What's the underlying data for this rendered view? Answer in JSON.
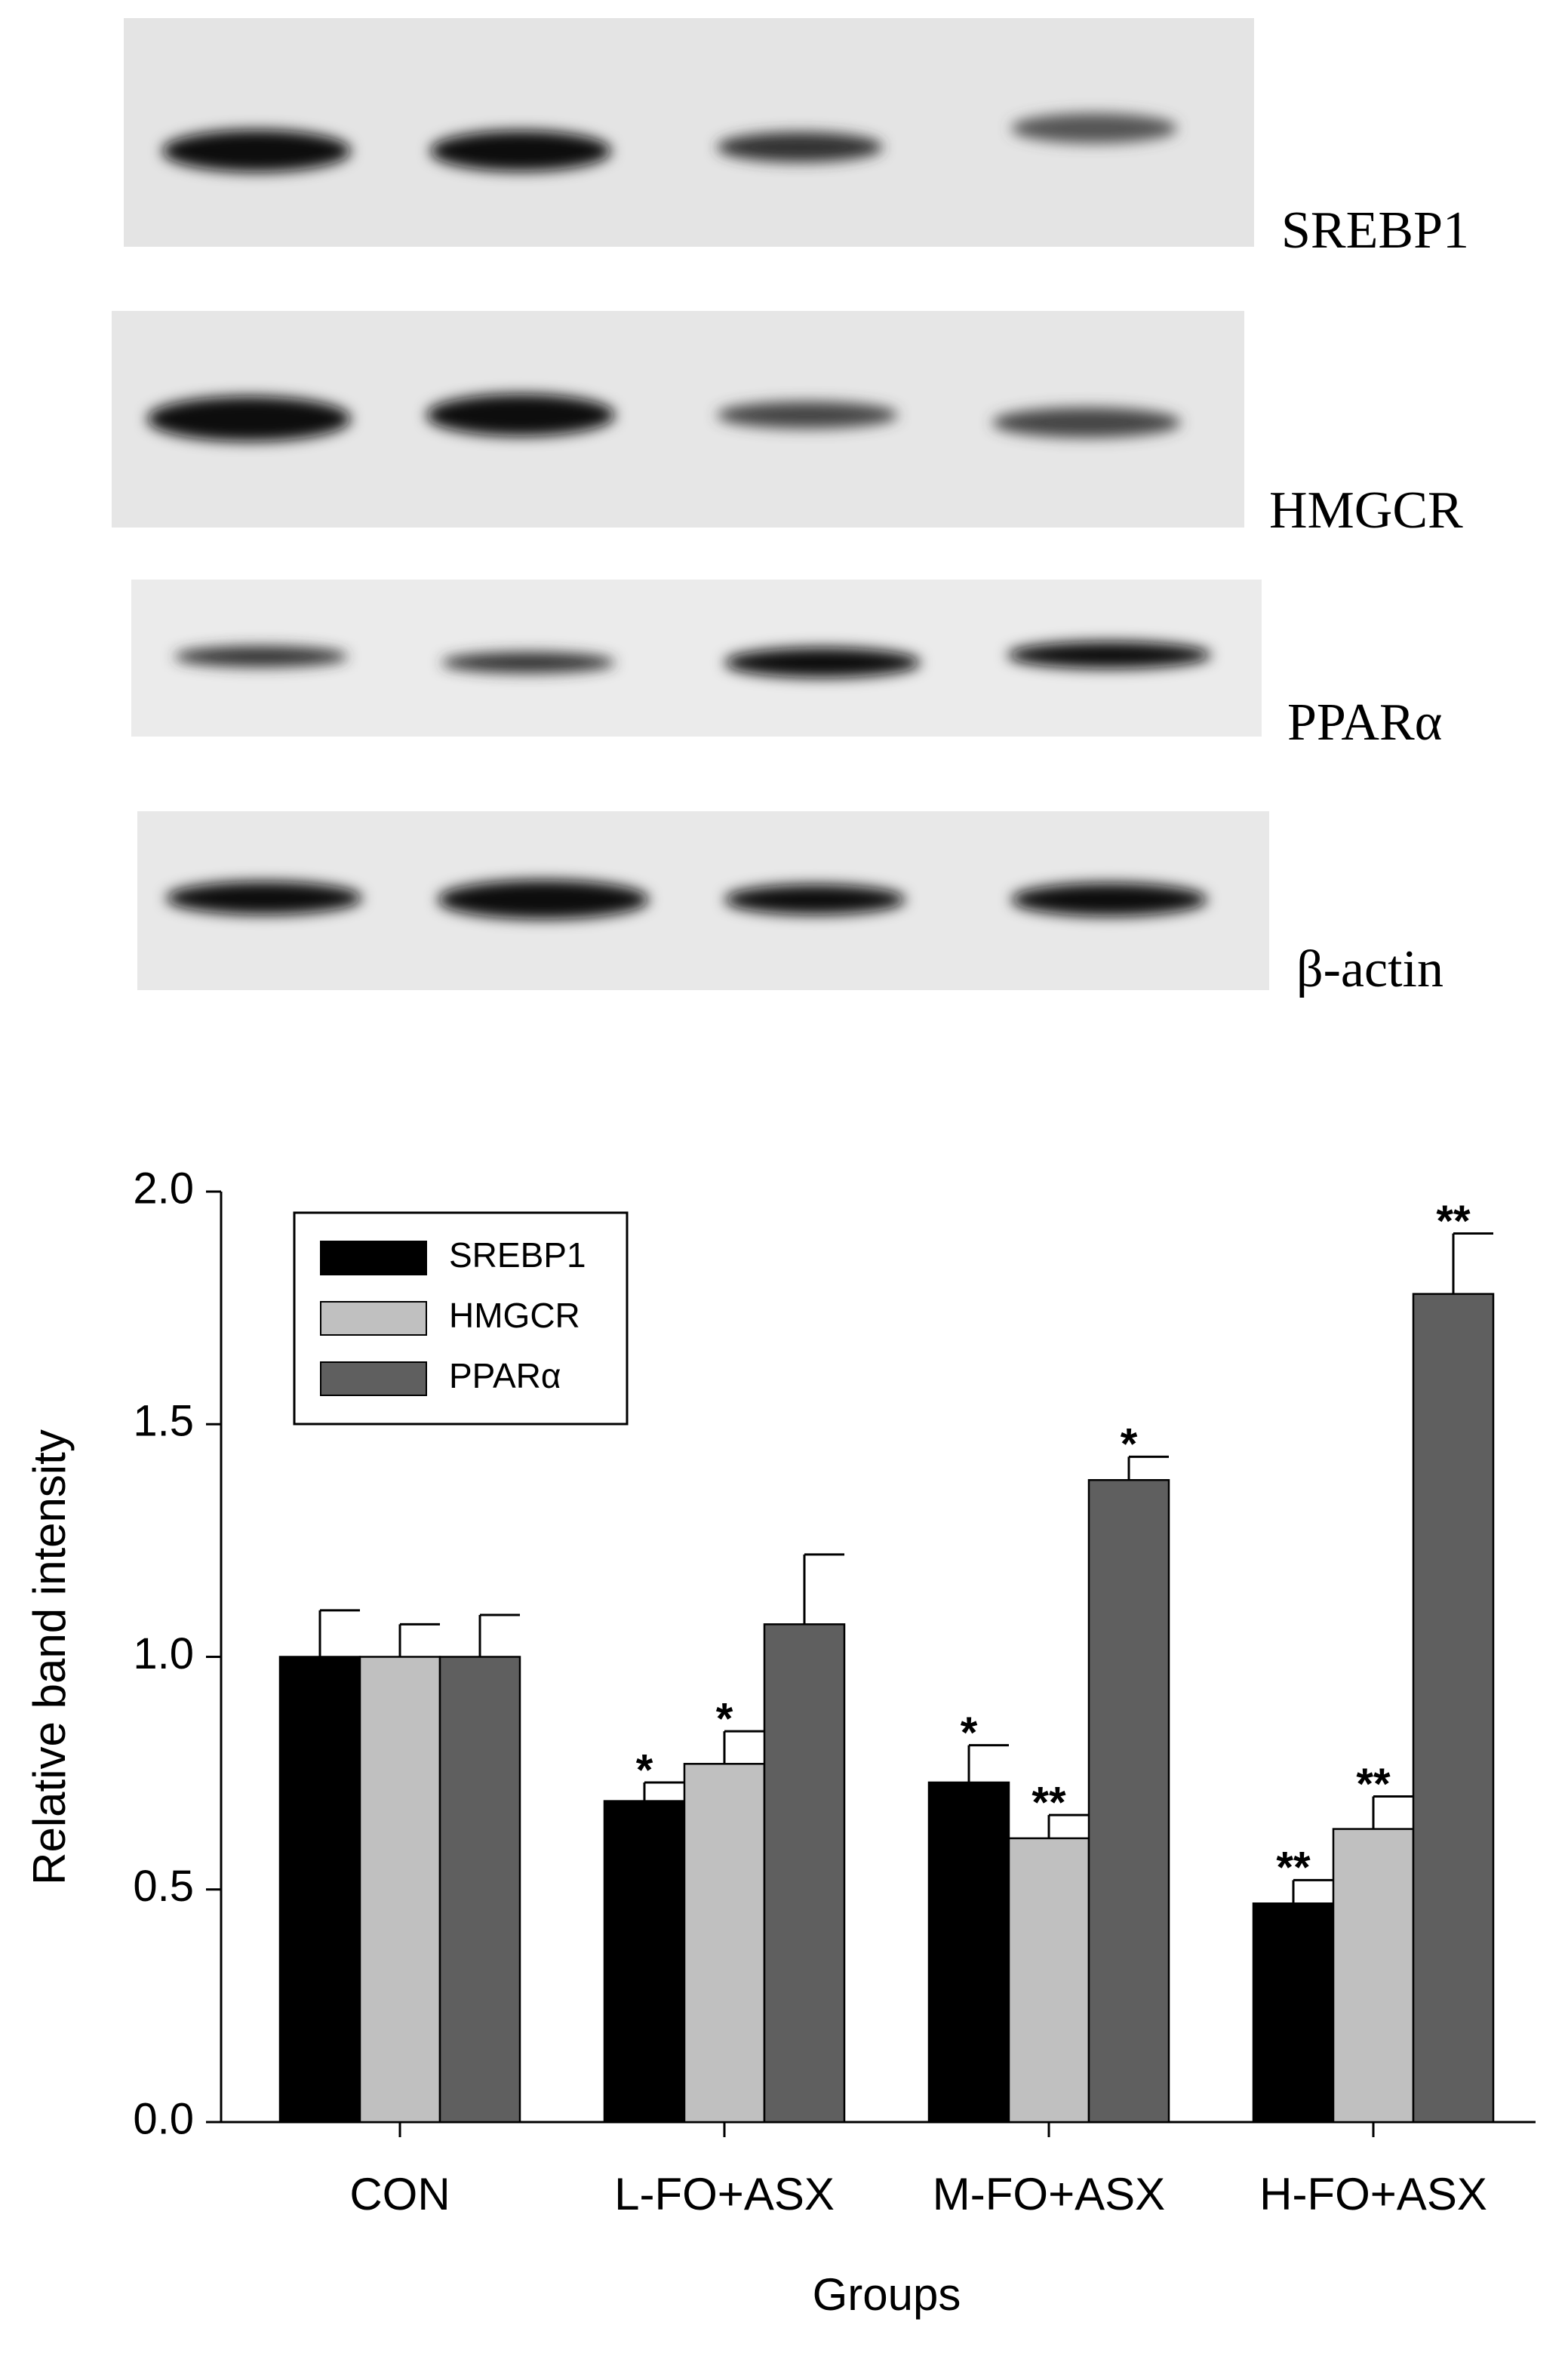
{
  "blots": {
    "labels": [
      "SREBP1",
      "HMGCR",
      "PPARα",
      "β-actin"
    ]
  },
  "chart_data": {
    "type": "bar",
    "y_label": "Relative band intensity",
    "x_label": "Groups",
    "categories": [
      "CON",
      "L-FO+ASX",
      "M-FO+ASX",
      "H-FO+ASX"
    ],
    "series": [
      {
        "name": "SREBP1",
        "color": "#000000",
        "values": [
          1.0,
          0.69,
          0.73,
          0.47
        ],
        "errors": [
          0.1,
          0.04,
          0.08,
          0.05
        ],
        "significance": [
          null,
          "*",
          "*",
          "**"
        ]
      },
      {
        "name": "HMGCR",
        "color": "#c0c0c0",
        "values": [
          1.0,
          0.77,
          0.61,
          0.63
        ],
        "errors": [
          0.07,
          0.07,
          0.05,
          0.07
        ],
        "significance": [
          null,
          "*",
          "**",
          "**"
        ]
      },
      {
        "name": "PPARα",
        "color": "#5f5f5f",
        "values": [
          1.0,
          1.07,
          1.38,
          1.78
        ],
        "errors": [
          0.09,
          0.15,
          0.05,
          0.13
        ],
        "significance": [
          null,
          null,
          "*",
          "**"
        ]
      }
    ],
    "ylim": [
      0,
      2
    ],
    "yticks": [
      {
        "value": 0,
        "label": "0.0"
      },
      0.5,
      {
        "value": 1,
        "label": "1.0"
      },
      1.5,
      {
        "value": 2,
        "label": "2.0"
      }
    ],
    "grid": false,
    "legend": "top-left"
  }
}
